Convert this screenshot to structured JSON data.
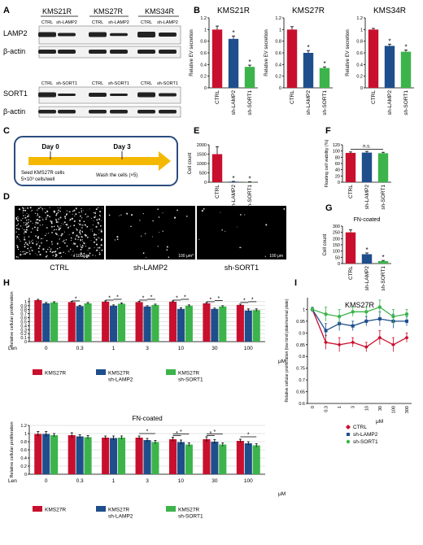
{
  "colors": {
    "ctrl": "#c8102e",
    "lamp2": "#1f4e8c",
    "sort1": "#3cb44b",
    "arrow": "#f5b800",
    "box": "#2b4c7e"
  },
  "labels": {
    "ctrl": "CTRL",
    "lamp2": "sh-LAMP2",
    "sort1": "sh-SORT1",
    "bactin": "β-actin",
    "lamp2_protein": "LAMP2",
    "sort1_protein": "SORT1",
    "len": "Len",
    "uM": "μM",
    "fn": "FN-coated",
    "star": "*",
    "ns": "n.s.",
    "scale": "100 μm"
  },
  "panelA": {
    "letter": "A",
    "cells": [
      "KMS21R",
      "KMS27R",
      "KMS34R"
    ],
    "lane_top": [
      "CTRL",
      "sh-LAMP2",
      "CTRL",
      "sh-LAMP2",
      "CTRL",
      "sh-LAMP2"
    ],
    "lane_bot": [
      "CTRL",
      "sh-SORT1",
      "CTRL",
      "sh-SORT1",
      "CTRL",
      "sh-SORT1"
    ]
  },
  "panelC": {
    "letter": "C",
    "day0": "Day 0",
    "day3": "Day 3",
    "seed1": "Seed KMS27R cells",
    "seed2": "5×10³ cells/well",
    "wash": "Wash the cells (×5)"
  },
  "panelD": {
    "letter": "D",
    "captions": [
      "CTRL",
      "sh-LAMP2",
      "sh-SORT1"
    ]
  },
  "panelH": {
    "letter": "H",
    "legend": [
      "KMS27R",
      "KMS27R sh-LAMP2",
      "KMS27R sh-SORT1"
    ]
  },
  "panelI": {
    "letter": "I"
  },
  "chart_data": [
    {
      "id": "B1",
      "letter": "B",
      "type": "bar",
      "title": "KMS21R",
      "ylabel": "Relative EV secretion",
      "categories": [
        "CTRL",
        "sh-LAMP2",
        "sh-SORT1"
      ],
      "values": [
        1.0,
        0.84,
        0.36
      ],
      "errors": [
        0.06,
        0.05,
        0.03
      ],
      "stars": [
        false,
        true,
        true
      ],
      "yticks": [
        0,
        0.2,
        0.4,
        0.6,
        0.8,
        1,
        1.2
      ],
      "ylim": [
        0,
        1.2
      ]
    },
    {
      "id": "B2",
      "type": "bar",
      "title": "KMS27R",
      "ylabel": "Relative EV secretion",
      "categories": [
        "CTRL",
        "sh-LAMP2",
        "sh-SORT1"
      ],
      "values": [
        1.0,
        0.6,
        0.34
      ],
      "errors": [
        0.05,
        0.04,
        0.02
      ],
      "stars": [
        false,
        true,
        true
      ],
      "yticks": [
        0,
        0.2,
        0.4,
        0.6,
        0.8,
        1,
        1.2
      ],
      "ylim": [
        0,
        1.2
      ]
    },
    {
      "id": "B3",
      "type": "bar",
      "title": "KMS34R",
      "ylabel": "Relative EV secretion",
      "categories": [
        "CTRL",
        "sh-LAMP2",
        "sh-SORT1"
      ],
      "values": [
        1.0,
        0.72,
        0.62
      ],
      "errors": [
        0.02,
        0.03,
        0.03
      ],
      "stars": [
        false,
        true,
        true
      ],
      "yticks": [
        0,
        0.2,
        0.4,
        0.6,
        0.8,
        1,
        1.2
      ],
      "ylim": [
        0,
        1.2
      ]
    },
    {
      "id": "E",
      "letter": "E",
      "type": "bar",
      "ylabel": "Cell count",
      "categories": [
        "CTRL",
        "sh-LAMP2",
        "sh-SORT1"
      ],
      "values": [
        1500,
        30,
        15
      ],
      "errors": [
        400,
        15,
        10
      ],
      "stars": [
        false,
        true,
        true
      ],
      "yticks": [
        0,
        500,
        1000,
        1500,
        2000
      ],
      "ylim": [
        0,
        2000
      ]
    },
    {
      "id": "F",
      "letter": "F",
      "type": "bar",
      "ylabel": "Floating cell viability (%)",
      "categories": [
        "CTRL",
        "sh-LAMP2",
        "sh-SORT1"
      ],
      "values": [
        94,
        95,
        93
      ],
      "errors": [
        3,
        4,
        3
      ],
      "stars": [
        false,
        false,
        false
      ],
      "yticks": [
        0,
        20,
        40,
        60,
        80,
        100,
        120
      ],
      "ylim": [
        0,
        120
      ]
    },
    {
      "id": "G",
      "letter": "G",
      "type": "bar",
      "title": "FN-coated",
      "ylabel": "Cell count",
      "categories": [
        "CTRL",
        "sh-LAMP2",
        "sh-SORT1"
      ],
      "values": [
        250,
        75,
        20
      ],
      "errors": [
        20,
        10,
        5
      ],
      "stars": [
        false,
        true,
        true
      ],
      "yticks": [
        0,
        50,
        100,
        150,
        200,
        250,
        300
      ],
      "ylim": [
        0,
        300
      ]
    },
    {
      "id": "H1",
      "type": "bar",
      "ylabel": "Relative cellular proliferation",
      "xlabel": "Len",
      "categories": [
        "0",
        "0.3",
        "1",
        "3",
        "10",
        "30",
        "100"
      ],
      "series": [
        {
          "name": "KMS27R",
          "values": [
            1.04,
            0.99,
            1.0,
            0.99,
            1.0,
            0.96,
            0.92
          ],
          "errors": [
            0.02,
            0.02,
            0.02,
            0.02,
            0.02,
            0.02,
            0.02
          ]
        },
        {
          "name": "KMS27R sh-LAMP2",
          "values": [
            0.96,
            0.89,
            0.9,
            0.88,
            0.82,
            0.82,
            0.78
          ],
          "errors": [
            0.02,
            0.02,
            0.02,
            0.02,
            0.03,
            0.02,
            0.04
          ]
        },
        {
          "name": "KMS27R sh-SORT1",
          "values": [
            0.98,
            0.96,
            0.95,
            0.92,
            0.9,
            0.88,
            0.79
          ],
          "errors": [
            0.02,
            0.02,
            0.02,
            0.02,
            0.02,
            0.02,
            0.03
          ]
        }
      ],
      "yticks": [
        0,
        0.1,
        0.2,
        0.3,
        0.4,
        0.5,
        0.6,
        0.7,
        0.8,
        0.9,
        1
      ],
      "ylim": [
        0,
        1.1
      ]
    },
    {
      "id": "H2",
      "type": "bar",
      "title": "FN-coated",
      "ylabel": "Relative cellular proliferation",
      "xlabel": "Len",
      "categories": [
        "0",
        "0.3",
        "1",
        "3",
        "10",
        "30",
        "100"
      ],
      "series": [
        {
          "name": "KMS27R",
          "values": [
            0.99,
            0.96,
            0.9,
            0.9,
            0.86,
            0.86,
            0.82
          ],
          "errors": [
            0.06,
            0.06,
            0.04,
            0.04,
            0.05,
            0.06,
            0.04
          ]
        },
        {
          "name": "KMS27R sh-LAMP2",
          "values": [
            0.99,
            0.93,
            0.89,
            0.84,
            0.79,
            0.8,
            0.76
          ],
          "errors": [
            0.06,
            0.04,
            0.05,
            0.04,
            0.05,
            0.05,
            0.04
          ]
        },
        {
          "name": "KMS27R sh-SORT1",
          "values": [
            0.96,
            0.91,
            0.9,
            0.79,
            0.73,
            0.73,
            0.71
          ],
          "errors": [
            0.04,
            0.04,
            0.04,
            0.04,
            0.04,
            0.04,
            0.04
          ]
        }
      ],
      "yticks": [
        0,
        0.2,
        0.4,
        0.6,
        0.8,
        1,
        1.2
      ],
      "ylim": [
        0,
        1.2
      ]
    },
    {
      "id": "I",
      "type": "line",
      "title": "KMS27R",
      "ylabel": "Relative cellular proliferation (low bind plate/normal plate)",
      "xlabel": "μM",
      "categories": [
        "0",
        "0.3",
        "1",
        "3",
        "10",
        "30",
        "100",
        "300"
      ],
      "series": [
        {
          "name": "CTRL",
          "values": [
            1.0,
            0.86,
            0.85,
            0.86,
            0.84,
            0.88,
            0.85,
            0.88
          ]
        },
        {
          "name": "sh-LAMP2",
          "values": [
            1.0,
            0.91,
            0.94,
            0.93,
            0.95,
            0.96,
            0.95,
            0.95
          ]
        },
        {
          "name": "sh-SORT1",
          "values": [
            1.0,
            0.98,
            0.97,
            0.99,
            0.99,
            1.01,
            0.97,
            0.98
          ]
        }
      ],
      "errors": [
        0.01,
        0.03,
        0.03,
        0.02,
        0.02,
        0.03,
        0.03,
        0.02
      ],
      "yticks": [
        0.6,
        0.65,
        0.7,
        0.75,
        0.8,
        0.85,
        0.9,
        0.95,
        1
      ],
      "ylim": [
        0.6,
        1.05
      ]
    }
  ]
}
